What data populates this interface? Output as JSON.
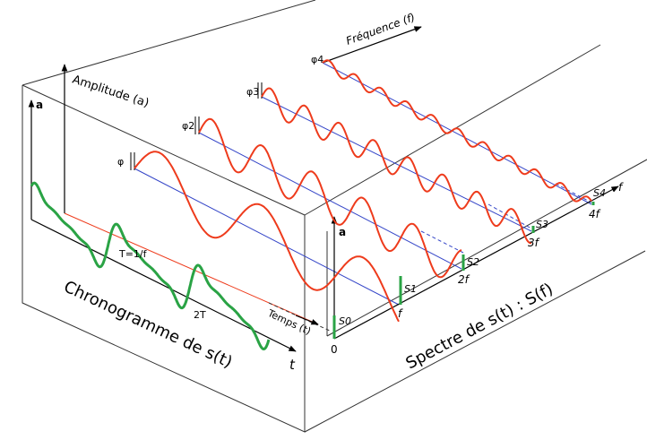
{
  "labels": {
    "amplitude_axis": "Amplitude (a)",
    "frequency_axis": "Fréquence (f)",
    "time_axis": "Temps (t)",
    "left_a": "a",
    "right_a": "a",
    "f_arrow": "f",
    "t_arrow": "t",
    "period": "T=1/f",
    "two_t": "2T",
    "chronogram": "Chronogramme de s(t)",
    "spectrum": "Spectre de s(t) : S(f)",
    "zero": "0",
    "freq_ticks": [
      "f",
      "2f",
      "3f",
      "4f"
    ],
    "spectral_labels": [
      "S0",
      "S1",
      "S2",
      "S3",
      "S4"
    ],
    "phase_labels": [
      "φ",
      "φ2",
      "φ3",
      "φ4"
    ]
  },
  "colors": {
    "outline": "#333333",
    "signal": "#2aa345",
    "harmonic": "#ee3b1c",
    "axis_line": "#3546c8",
    "time_line": "#ee3b1c"
  },
  "harmonics": [
    {
      "order": 1,
      "amplitude": 1.0
    },
    {
      "order": 2,
      "amplitude": 0.6
    },
    {
      "order": 3,
      "amplitude": 0.35
    },
    {
      "order": 4,
      "amplitude": 0.15
    }
  ]
}
